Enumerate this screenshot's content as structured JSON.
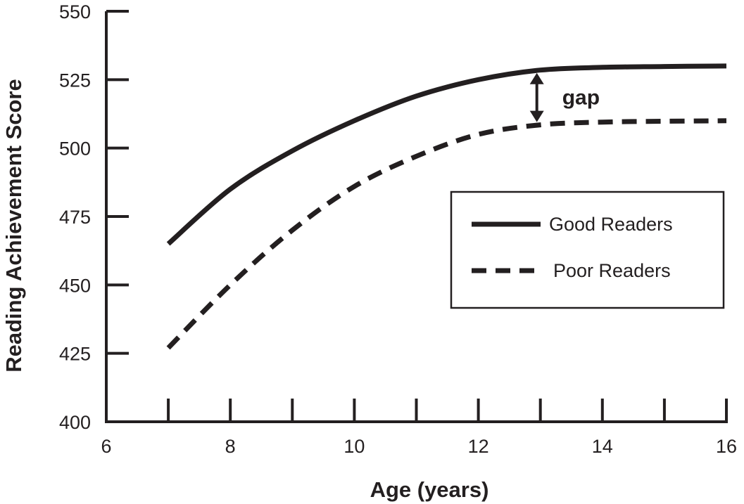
{
  "chart_data": {
    "type": "line",
    "title": "",
    "xlabel": "Age (years)",
    "ylabel": "Reading Achievement Score",
    "xlim": [
      6,
      16
    ],
    "ylim": [
      400,
      550
    ],
    "x_ticks": [
      6,
      8,
      10,
      12,
      14,
      16
    ],
    "y_ticks": [
      400,
      425,
      450,
      475,
      500,
      525,
      550
    ],
    "grid": false,
    "legend_position": "right",
    "series": [
      {
        "name": "Good Readers",
        "style": "solid",
        "color": "#231f20",
        "points": [
          [
            7,
            465
          ],
          [
            8,
            485
          ],
          [
            9,
            499
          ],
          [
            10,
            510
          ],
          [
            11,
            519
          ],
          [
            12,
            525
          ],
          [
            13,
            528.5
          ],
          [
            14,
            529.5
          ],
          [
            15,
            529.8
          ],
          [
            16,
            530
          ]
        ]
      },
      {
        "name": "Poor Readers",
        "style": "dashed",
        "color": "#231f20",
        "points": [
          [
            7,
            427
          ],
          [
            8,
            450
          ],
          [
            9,
            470
          ],
          [
            10,
            486
          ],
          [
            11,
            497
          ],
          [
            12,
            505
          ],
          [
            13,
            508.5
          ],
          [
            14,
            509.5
          ],
          [
            15,
            509.8
          ],
          [
            16,
            510
          ]
        ]
      }
    ],
    "annotations": [
      {
        "text": "gap",
        "x": 13,
        "y_from": 508.5,
        "y_to": 528.5
      }
    ]
  }
}
